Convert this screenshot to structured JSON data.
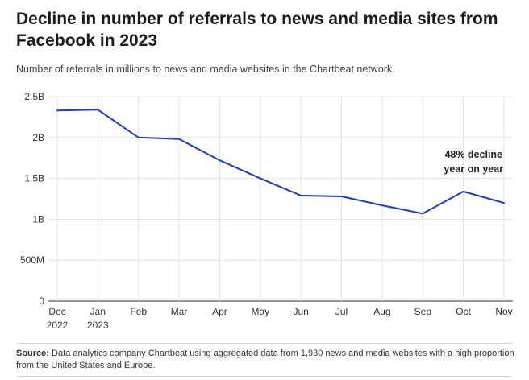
{
  "title": "Decline in number of referrals to news and media sites from Facebook in 2023",
  "subtitle": "Number of referrals in millions to news and media websites in the Chartbeat network.",
  "source_label": "Source:",
  "source_text": "Data analytics company Chartbeat using aggregated data from 1,930 news and media websites with a high proportion from the United States and Europe.",
  "colors": {
    "line": "#1f3fb5",
    "grid": "#e3e3e3",
    "axis": "#555555"
  },
  "chart_data": {
    "type": "line",
    "categories": [
      "Dec 2022",
      "Jan 2023",
      "Feb",
      "Mar",
      "Apr",
      "May",
      "Jun",
      "Jul",
      "Aug",
      "Sep",
      "Oct",
      "Nov"
    ],
    "tick_labels": [
      [
        "Dec",
        "2022"
      ],
      [
        "Jan",
        "2023"
      ],
      [
        "Feb"
      ],
      [
        "Mar"
      ],
      [
        "Apr"
      ],
      [
        "May"
      ],
      [
        "Jun"
      ],
      [
        "Jul"
      ],
      [
        "Aug"
      ],
      [
        "Sep"
      ],
      [
        "Oct"
      ],
      [
        "Nov"
      ]
    ],
    "series": [
      {
        "values": [
          2330,
          2340,
          2000,
          1980,
          1720,
          1500,
          1290,
          1280,
          1170,
          1070,
          1340,
          1200
        ]
      }
    ],
    "ylim": [
      0,
      2500
    ],
    "yticks": [
      0,
      500,
      1000,
      1500,
      2000,
      2500
    ],
    "ytick_labels": [
      "0",
      "500M",
      "1B",
      "1.5B",
      "2B",
      "2.5B"
    ],
    "grid": true,
    "annotations": [
      {
        "lines": [
          "48% decline",
          "year on year"
        ],
        "x_index": 10.25,
        "y": 1750
      }
    ],
    "xlabel": "",
    "ylabel": ""
  }
}
